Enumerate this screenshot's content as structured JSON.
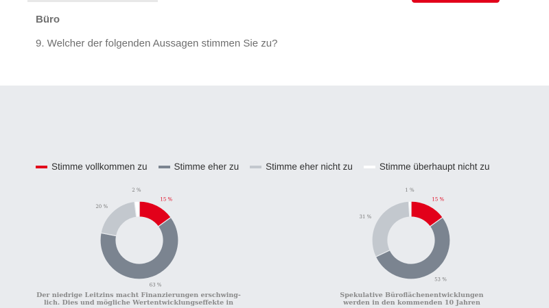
{
  "header": {
    "section": "Büro",
    "question": "9. Welcher der folgenden Aussagen stimmen Sie zu?"
  },
  "legend": [
    {
      "label": "Stimme vollkommen zu",
      "color": "#e2001a"
    },
    {
      "label": "Stimme eher zu",
      "color": "#7b8490"
    },
    {
      "label": "Stimme eher nicht zu",
      "color": "#c3c8ce"
    },
    {
      "label": "Stimme überhaupt nicht zu",
      "color": "#ffffff"
    }
  ],
  "chart_data": [
    {
      "type": "pie",
      "categories": [
        "Stimme vollkommen zu",
        "Stimme eher zu",
        "Stimme eher nicht zu",
        "Stimme überhaupt nicht zu"
      ],
      "values": [
        15,
        63,
        20,
        2
      ],
      "labels": [
        "15 %",
        "63 %",
        "20 %",
        "2 %"
      ],
      "caption": "Der niedrige Leitzins macht Finanzierungen erschwing-\nlich. Dies und mögliche Wertentwicklungseffekte in"
    },
    {
      "type": "pie",
      "categories": [
        "Stimme vollkommen zu",
        "Stimme eher zu",
        "Stimme eher nicht zu",
        "Stimme überhaupt nicht zu"
      ],
      "values": [
        15,
        53,
        31,
        1
      ],
      "labels": [
        "15 %",
        "53 %",
        "31 %",
        "1 %"
      ],
      "caption": "Spekulative Büroflächenentwicklungen\nwerden in den kommenden 10 Jahren"
    }
  ]
}
